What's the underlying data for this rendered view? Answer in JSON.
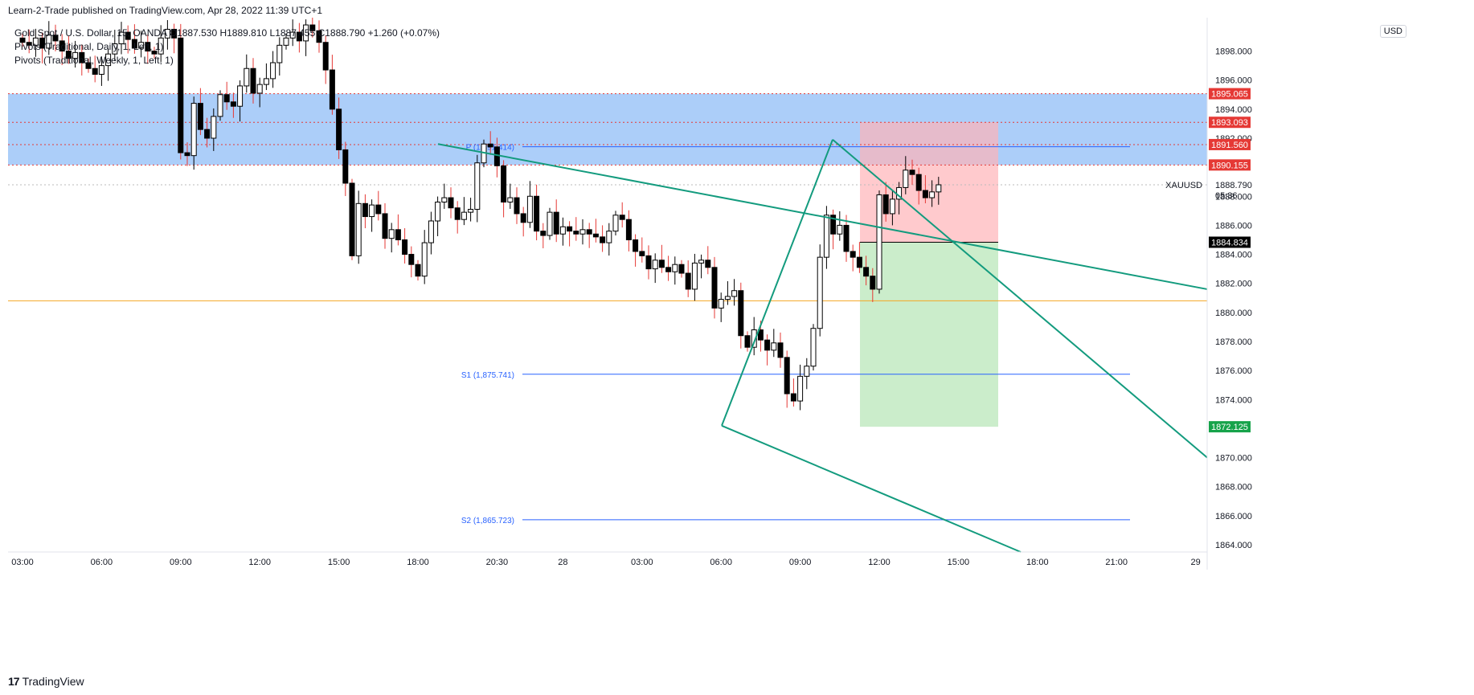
{
  "header": {
    "published": "Learn-2-Trade published on TradingView.com, Apr 28, 2022 11:39 UTC+1"
  },
  "legend": {
    "symbol": "Gold Spot / U.S. Dollar, 15, OANDA  O1887.530  H1889.810  L1887.455  C1888.790  +1.260 (+0.07%)",
    "pivot_daily": "Pivots (Traditional, Daily, 1, Left, 1)",
    "pivot_weekly": "Pivots (Traditional, Weekly, 1, Left, 1)"
  },
  "currency": "USD",
  "footer": {
    "brand": "TradingView",
    "logo": "17"
  },
  "colors": {
    "up_body": "#ffffff",
    "down_body": "#000000",
    "up_wick": "#000000",
    "down_wick": "#e53935",
    "zone": "#90bdf7",
    "stop": "#ffb3b8",
    "target": "#b5e6b5",
    "channel": "#139b7e",
    "pivot_line": "#2962ff",
    "support_line": "#f5a623",
    "level_dotted": "#e53935",
    "badge_red": "#e53935",
    "badge_green": "#16a34a",
    "badge_dark": "#000000"
  },
  "chart_data": {
    "type": "candlestick",
    "instrument": "XAUUSD",
    "ylim": [
      1863.5,
      1900.3
    ],
    "y_ticks": [
      "1898.000",
      "1896.000",
      "1894.000",
      "1892.000",
      "1888.000",
      "1886.000",
      "1884.000",
      "1882.000",
      "1880.000",
      "1878.000",
      "1876.000",
      "1874.000",
      "1870.000",
      "1868.000",
      "1866.000",
      "1864.000"
    ],
    "x_ticks": [
      {
        "label": "03:00",
        "bar": 0
      },
      {
        "label": "06:00",
        "bar": 12
      },
      {
        "label": "09:00",
        "bar": 24
      },
      {
        "label": "12:00",
        "bar": 36
      },
      {
        "label": "15:00",
        "bar": 48
      },
      {
        "label": "18:00",
        "bar": 60
      },
      {
        "label": "20:30",
        "bar": 72
      },
      {
        "label": "28",
        "bar": 82
      },
      {
        "label": "03:00",
        "bar": 94
      },
      {
        "label": "06:00",
        "bar": 106
      },
      {
        "label": "09:00",
        "bar": 118
      },
      {
        "label": "12:00",
        "bar": 130
      },
      {
        "label": "15:00",
        "bar": 142
      },
      {
        "label": "18:00",
        "bar": 154
      },
      {
        "label": "21:00",
        "bar": 166
      },
      {
        "label": "29",
        "bar": 178
      }
    ],
    "close_values": [
      1898.6,
      1898.4,
      1898.9,
      1898.2,
      1899.1,
      1898.7,
      1898.0,
      1897.5,
      1897.9,
      1897.2,
      1896.8,
      1896.4,
      1897.0,
      1897.8,
      1898.5,
      1899.3,
      1898.8,
      1898.2,
      1898.6,
      1898.0,
      1897.8,
      1898.9,
      1899.5,
      1898.9,
      1891.0,
      1890.8,
      1894.4,
      1892.6,
      1892.0,
      1893.5,
      1895.0,
      1894.5,
      1894.2,
      1895.6,
      1896.8,
      1895.1,
      1895.7,
      1896.1,
      1897.2,
      1898.4,
      1898.9,
      1899.3,
      1898.7,
      1899.8,
      1899.4,
      1898.6,
      1896.7,
      1894.0,
      1891.2,
      1888.9,
      1883.9,
      1887.5,
      1886.6,
      1887.4,
      1886.8,
      1885.1,
      1885.7,
      1885.0,
      1884.0,
      1883.3,
      1882.5,
      1884.8,
      1886.3,
      1887.6,
      1887.9,
      1887.2,
      1886.4,
      1886.9,
      1887.1,
      1890.3,
      1891.6,
      1891.4,
      1890.1,
      1887.6,
      1887.9,
      1886.8,
      1886.2,
      1888.0,
      1885.6,
      1885.3,
      1886.9,
      1885.4,
      1885.9,
      1885.6,
      1885.4,
      1885.7,
      1885.4,
      1885.2,
      1884.8,
      1885.6,
      1886.7,
      1886.4,
      1885.0,
      1884.2,
      1883.9,
      1883.0,
      1883.6,
      1883.1,
      1882.8,
      1883.3,
      1882.7,
      1881.6,
      1883.4,
      1883.6,
      1883.1,
      1880.3,
      1880.9,
      1881.1,
      1881.5,
      1878.4,
      1877.6,
      1878.8,
      1878.1,
      1877.4,
      1877.9,
      1876.9,
      1874.4,
      1873.9,
      1875.6,
      1876.3,
      1878.9,
      1883.8,
      1886.7,
      1885.4,
      1886.0,
      1884.2,
      1883.8,
      1883.1,
      1882.5,
      1881.6,
      1888.1,
      1886.8,
      1887.8,
      1888.6,
      1889.8,
      1889.5,
      1888.4,
      1887.9,
      1888.3,
      1888.79
    ],
    "levels": {
      "pivot_p": {
        "label": "P (1,891.414)",
        "value": 1891.414
      },
      "pivot_s1": {
        "label": "S1 (1,875.741)",
        "value": 1875.741
      },
      "pivot_s2": {
        "label": "S2 (1,865.723)",
        "value": 1865.723
      },
      "horizontal_support": 1880.8
    },
    "price_labels": [
      {
        "label": "1895.065",
        "value": 1895.065,
        "color": "red"
      },
      {
        "label": "1893.093",
        "value": 1893.093,
        "color": "red"
      },
      {
        "label": "1891.560",
        "value": 1891.56,
        "color": "red"
      },
      {
        "label": "1890.155",
        "value": 1890.155,
        "color": "red"
      },
      {
        "label": "1884.834",
        "value": 1884.834,
        "color": "dark"
      },
      {
        "label": "1872.125",
        "value": 1872.125,
        "color": "green"
      }
    ],
    "current_price": {
      "label": "1888.790",
      "countdown": "05:36",
      "symbol": "XAUUSD",
      "value": 1888.79
    },
    "zones": [
      {
        "kind": "resistance",
        "from": 1890.155,
        "to": 1895.065
      },
      {
        "kind": "stop",
        "from": 1884.834,
        "to": 1893.093
      },
      {
        "kind": "target",
        "from": 1872.125,
        "to": 1884.834
      }
    ],
    "grid": false
  }
}
